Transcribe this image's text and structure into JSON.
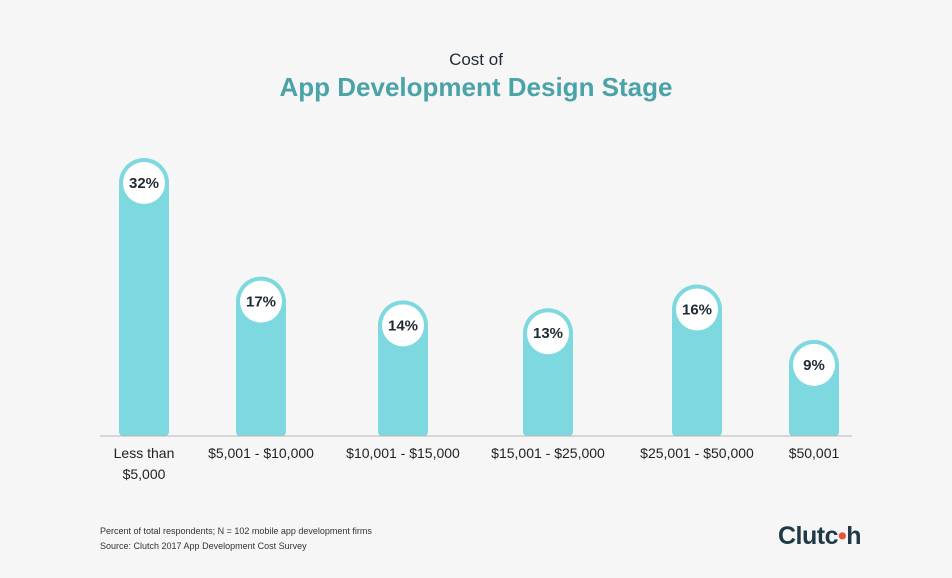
{
  "title": {
    "line1": "Cost of",
    "line2": "App Development Design Stage"
  },
  "chart_data": {
    "type": "bar",
    "categories": [
      "Less than $5,000",
      "$5,001 - $10,000",
      "$10,001 - $15,000",
      "$15,001 - $25,000",
      "$25,001 - $50,000",
      "$50,001"
    ],
    "category_lines": [
      [
        "Less than",
        "$5,000"
      ],
      [
        "$5,001 - $10,000"
      ],
      [
        "$10,001 - $15,000"
      ],
      [
        "$15,001 - $25,000"
      ],
      [
        "$25,001 - $50,000"
      ],
      [
        "$50,001"
      ]
    ],
    "values": [
      32,
      17,
      14,
      13,
      16,
      9
    ],
    "data_labels": [
      "32%",
      "17%",
      "14%",
      "13%",
      "16%",
      "9%"
    ],
    "unit": "%",
    "ylim": [
      0,
      32
    ],
    "bar_color": "#7dd8e0",
    "grid": false,
    "legend": "none"
  },
  "footnotes": {
    "line1": "Percent of total respondents; N = 102 mobile app development firms",
    "line2": "Source: Clutch 2017 App Development Cost Survey"
  },
  "logo": {
    "text_before": "Clutc",
    "text_after": "h",
    "dot_color": "#e8533c"
  }
}
